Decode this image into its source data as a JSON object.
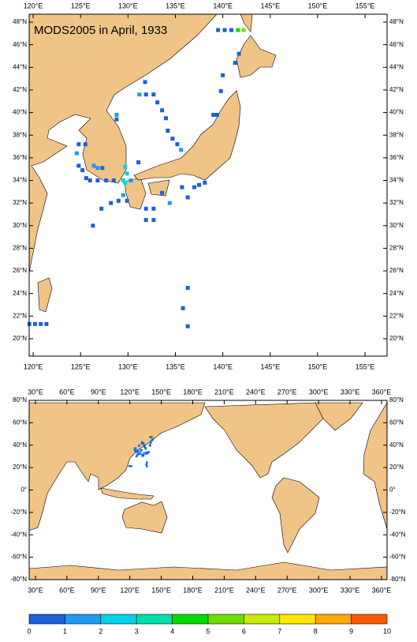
{
  "title": "MODS2005 in April, 1933",
  "regional_map": {
    "xlim": [
      119.58,
      157.32
    ],
    "ylim": [
      18.46,
      48.7
    ],
    "xticks": [
      {
        "value": 120,
        "label": "120°E"
      },
      {
        "value": 125,
        "label": "125°E"
      },
      {
        "value": 130,
        "label": "130°E"
      },
      {
        "value": 135,
        "label": "135°E"
      },
      {
        "value": 140,
        "label": "140°E"
      },
      {
        "value": 145,
        "label": "145°E"
      },
      {
        "value": 150,
        "label": "150°E"
      },
      {
        "value": 155,
        "label": "155°E"
      }
    ],
    "yticks": [
      {
        "value": 20,
        "label": "20°N"
      },
      {
        "value": 22,
        "label": "22°N"
      },
      {
        "value": 24,
        "label": "24°N"
      },
      {
        "value": 26,
        "label": "26°N"
      },
      {
        "value": 28,
        "label": "28°N"
      },
      {
        "value": 30,
        "label": "30°N"
      },
      {
        "value": 32,
        "label": "32°N"
      },
      {
        "value": 34,
        "label": "34°N"
      },
      {
        "value": 36,
        "label": "36°N"
      },
      {
        "value": 38,
        "label": "38°N"
      },
      {
        "value": 40,
        "label": "40°N"
      },
      {
        "value": 42,
        "label": "42°N"
      },
      {
        "value": 44,
        "label": "44°N"
      },
      {
        "value": 46,
        "label": "46°N"
      },
      {
        "value": 48,
        "label": "48°N"
      }
    ]
  },
  "global_map": {
    "xlim": [
      24.0,
      365.3
    ],
    "ylim": [
      -80,
      80
    ],
    "xticks": [
      {
        "value": 30,
        "label": "30°E"
      },
      {
        "value": 60,
        "label": "60°E"
      },
      {
        "value": 90,
        "label": "90°E"
      },
      {
        "value": 120,
        "label": "120°E"
      },
      {
        "value": 150,
        "label": "150°E"
      },
      {
        "value": 180,
        "label": "180°E"
      },
      {
        "value": 210,
        "label": "210°E"
      },
      {
        "value": 240,
        "label": "240°E"
      },
      {
        "value": 270,
        "label": "270°E"
      },
      {
        "value": 300,
        "label": "300°E"
      },
      {
        "value": 330,
        "label": "330°E"
      },
      {
        "value": 360,
        "label": "360°E"
      }
    ],
    "yticks": [
      {
        "value": -80,
        "label": "-80°N"
      },
      {
        "value": -60,
        "label": "-60°N"
      },
      {
        "value": -40,
        "label": "-40°N"
      },
      {
        "value": -20,
        "label": "-20°N"
      },
      {
        "value": 0,
        "label": "0°"
      },
      {
        "value": 20,
        "label": "20°N"
      },
      {
        "value": 40,
        "label": "40°N"
      },
      {
        "value": 60,
        "label": "60°N"
      },
      {
        "value": 80,
        "label": "80°N"
      }
    ]
  },
  "colorbar": {
    "bounds": [
      0,
      1,
      2,
      3,
      4,
      5,
      6,
      7,
      8,
      9,
      10
    ],
    "colors": [
      "#1c5fdc",
      "#1e9bf0",
      "#00d2e8",
      "#00e0a8",
      "#00dc00",
      "#70dc00",
      "#c8ec00",
      "#ffe800",
      "#ffaa00",
      "#ff5a00"
    ]
  },
  "observations": {
    "lon": [
      139.5,
      140.2,
      140.9,
      141.6,
      142.2,
      141.7,
      141.3,
      140.0,
      139.8,
      131.8,
      131.2,
      131.9,
      132.7,
      133.1,
      133.6,
      134.0,
      134.2,
      134.7,
      135.2,
      135.6,
      139.0,
      139.4,
      128.8,
      128.8,
      124.8,
      125.5,
      124.6,
      124.8,
      125.2,
      125.6,
      126.0,
      126.8,
      127.7,
      128.5,
      126.4,
      126.8,
      127.3,
      129.7,
      129.9,
      130.3,
      129.5,
      129.7,
      131.1,
      127.2,
      128.2,
      129.0,
      129.9,
      129.5,
      126.3,
      131.9,
      132.7,
      131.9,
      132.7,
      133.6,
      134.4,
      135.7,
      136.3,
      137.0,
      137.5,
      138.1,
      136.3,
      135.8,
      136.3,
      119.6,
      120.2,
      120.8,
      121.4
    ],
    "lat": [
      47.3,
      47.3,
      47.3,
      47.3,
      47.3,
      45.2,
      44.4,
      43.3,
      41.9,
      42.7,
      41.6,
      41.6,
      41.6,
      40.9,
      40.2,
      39.5,
      38.4,
      37.7,
      37.2,
      36.7,
      39.8,
      39.8,
      39.8,
      39.4,
      37.2,
      37.2,
      36.4,
      35.3,
      34.9,
      34.2,
      34.0,
      34.0,
      34.0,
      34.0,
      35.3,
      35.1,
      35.1,
      35.2,
      34.6,
      34.0,
      34.0,
      33.8,
      35.6,
      31.5,
      32.0,
      32.2,
      32.2,
      32.7,
      30.0,
      31.5,
      31.5,
      30.5,
      30.5,
      32.9,
      32.0,
      33.4,
      32.5,
      33.4,
      33.6,
      33.8,
      24.5,
      22.7,
      21.1,
      21.3,
      21.3,
      21.3,
      21.3
    ],
    "values": [
      1,
      1,
      1,
      5,
      6,
      1,
      1,
      1,
      1,
      1,
      2,
      1,
      1,
      1,
      1,
      1,
      1,
      1,
      1,
      2,
      1,
      1,
      2,
      1,
      1,
      1,
      2,
      1,
      1,
      1,
      1,
      1,
      1,
      1,
      2,
      2,
      1,
      3,
      3,
      2,
      3,
      3,
      1,
      1,
      1,
      1,
      1,
      2,
      1,
      1,
      1,
      1,
      1,
      1,
      2,
      1,
      1,
      1,
      1,
      1,
      1,
      1,
      1,
      1,
      1,
      1,
      1
    ]
  }
}
